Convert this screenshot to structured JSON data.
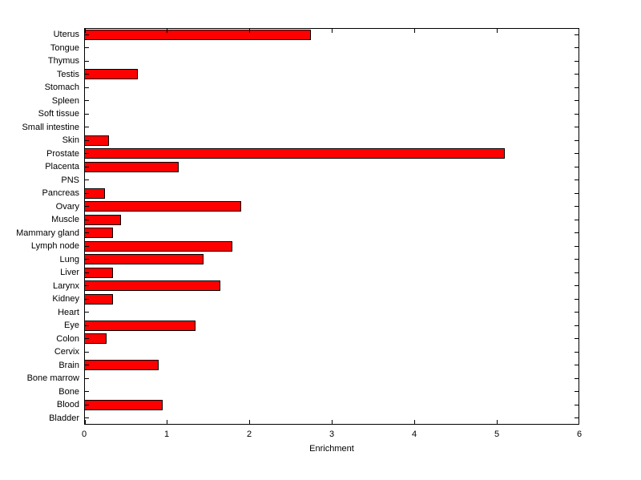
{
  "chart_data": {
    "type": "bar",
    "orientation": "horizontal",
    "title": "",
    "xlabel": "Enrichment",
    "ylabel": "",
    "xlim": [
      0,
      6
    ],
    "xticks": [
      0,
      1,
      2,
      3,
      4,
      5,
      6
    ],
    "grid": false,
    "legend": false,
    "bar_color": "#ff0000",
    "bar_edge_color": "#000000",
    "axis_color": "#000000",
    "background_color": "#ffffff",
    "categories": [
      "Uterus",
      "Tongue",
      "Thymus",
      "Testis",
      "Stomach",
      "Spleen",
      "Soft tissue",
      "Small intestine",
      "Skin",
      "Prostate",
      "Placenta",
      "PNS",
      "Pancreas",
      "Ovary",
      "Muscle",
      "Mammary gland",
      "Lymph node",
      "Lung",
      "Liver",
      "Larynx",
      "Kidney",
      "Heart",
      "Eye",
      "Colon",
      "Cervix",
      "Brain",
      "Bone marrow",
      "Bone",
      "Blood",
      "Bladder"
    ],
    "values": [
      2.75,
      0,
      0,
      0.65,
      0,
      0,
      0,
      0,
      0.3,
      5.1,
      1.15,
      0,
      0.25,
      1.9,
      0.45,
      0.35,
      1.8,
      1.45,
      0.35,
      1.65,
      0.35,
      0,
      1.35,
      0.27,
      0,
      0.9,
      0,
      0,
      0.95,
      0
    ]
  }
}
